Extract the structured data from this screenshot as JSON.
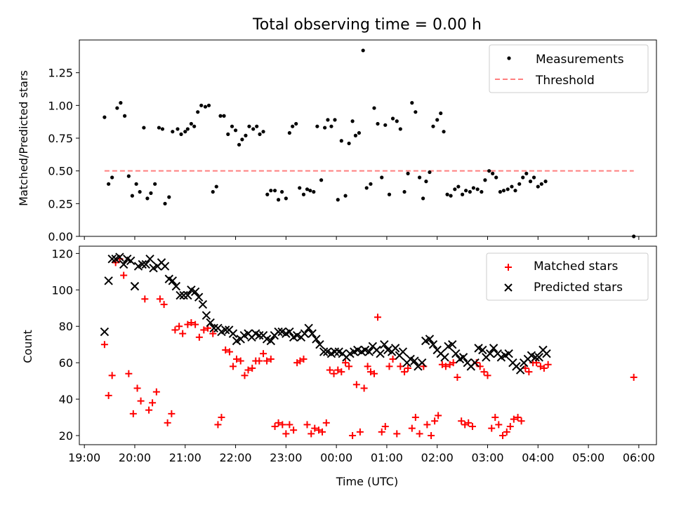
{
  "chart_data": [
    {
      "type": "scatter",
      "title": "Total observing time = 0.00 h",
      "xlabel": "",
      "ylabel": "Matched/Predicted stars",
      "xlim": [
        -0.1,
        11.35
      ],
      "ylim": [
        0.0,
        1.5
      ],
      "yticks": [
        "0.00",
        "0.25",
        "0.50",
        "0.75",
        "1.00",
        "1.25"
      ],
      "legend_position": "top-right",
      "threshold": {
        "name": "Threshold",
        "y": 0.5,
        "x": [
          0.4,
          10.9
        ],
        "color": "#ff7f7f"
      },
      "series": [
        {
          "name": "Measurements",
          "color": "#000000",
          "x": [
            0.4,
            0.48,
            0.55,
            0.65,
            0.72,
            0.8,
            0.88,
            0.95,
            1.03,
            1.1,
            1.18,
            1.25,
            1.32,
            1.4,
            1.48,
            1.55,
            1.6,
            1.68,
            1.75,
            1.85,
            1.92,
            2.0,
            2.05,
            2.12,
            2.18,
            2.25,
            2.32,
            2.4,
            2.47,
            2.55,
            2.62,
            2.7,
            2.77,
            2.85,
            2.93,
            3.0,
            3.07,
            3.13,
            3.2,
            3.27,
            3.35,
            3.42,
            3.48,
            3.55,
            3.63,
            3.7,
            3.78,
            3.85,
            3.92,
            4.0,
            4.07,
            4.13,
            4.2,
            4.27,
            4.35,
            4.42,
            4.48,
            4.55,
            4.62,
            4.7,
            4.77,
            4.83,
            4.9,
            4.97,
            5.03,
            5.1,
            5.18,
            5.25,
            5.32,
            5.38,
            5.45,
            5.53,
            5.6,
            5.68,
            5.75,
            5.82,
            5.9,
            5.97,
            6.05,
            6.12,
            6.2,
            6.27,
            6.35,
            6.42,
            6.5,
            6.57,
            6.65,
            6.72,
            6.78,
            6.85,
            6.92,
            7.0,
            7.07,
            7.13,
            7.2,
            7.27,
            7.35,
            7.42,
            7.5,
            7.57,
            7.65,
            7.72,
            7.8,
            7.88,
            7.95,
            8.03,
            8.1,
            8.17,
            8.25,
            8.32,
            8.4,
            8.48,
            8.55,
            8.63,
            8.7,
            8.77,
            8.85,
            8.92,
            9.0,
            9.07,
            9.15,
            10.9
          ],
          "y": [
            0.91,
            0.4,
            0.45,
            0.98,
            1.02,
            0.92,
            0.46,
            0.31,
            0.4,
            0.34,
            0.83,
            0.29,
            0.33,
            0.4,
            0.83,
            0.82,
            0.25,
            0.3,
            0.8,
            0.82,
            0.78,
            0.8,
            0.82,
            0.86,
            0.84,
            0.95,
            1.0,
            0.99,
            1.0,
            0.34,
            0.38,
            0.92,
            0.92,
            0.78,
            0.84,
            0.81,
            0.7,
            0.74,
            0.77,
            0.84,
            0.82,
            0.84,
            0.78,
            0.8,
            0.32,
            0.35,
            0.35,
            0.28,
            0.34,
            0.29,
            0.79,
            0.84,
            0.86,
            0.37,
            0.32,
            0.36,
            0.35,
            0.34,
            0.84,
            0.43,
            0.83,
            0.89,
            0.84,
            0.89,
            0.28,
            0.73,
            0.31,
            0.71,
            0.88,
            0.77,
            0.79,
            1.42,
            0.37,
            0.4,
            0.98,
            0.86,
            0.45,
            0.85,
            0.32,
            0.9,
            0.88,
            0.82,
            0.34,
            0.48,
            1.02,
            0.95,
            0.45,
            0.29,
            0.42,
            0.49,
            0.84,
            0.89,
            0.94,
            0.8,
            0.32,
            0.31,
            0.36,
            0.38,
            0.32,
            0.35,
            0.34,
            0.37,
            0.36,
            0.34,
            0.43,
            0.5,
            0.48,
            0.45,
            0.34,
            0.35,
            0.36,
            0.38,
            0.35,
            0.4,
            0.45,
            0.48,
            0.42,
            0.45,
            0.38,
            0.4,
            0.42,
            0.0
          ]
        }
      ]
    },
    {
      "type": "scatter",
      "title": "",
      "xlabel": "Time (UTC)",
      "ylabel": "Count",
      "xlim": [
        -0.1,
        11.35
      ],
      "ylim": [
        15,
        124
      ],
      "yticks": [
        "20",
        "40",
        "60",
        "80",
        "100",
        "120"
      ],
      "xticks": [
        "19:00",
        "20:00",
        "21:00",
        "22:00",
        "23:00",
        "00:00",
        "01:00",
        "02:00",
        "03:00",
        "04:00",
        "05:00",
        "06:00"
      ],
      "legend_position": "top-right",
      "series": [
        {
          "name": "Matched stars",
          "marker": "plus",
          "color": "#ff0000",
          "x": [
            0.4,
            0.48,
            0.55,
            0.62,
            0.7,
            0.78,
            0.88,
            0.97,
            1.05,
            1.12,
            1.2,
            1.28,
            1.35,
            1.43,
            1.5,
            1.58,
            1.65,
            1.73,
            1.8,
            1.88,
            1.95,
            2.05,
            2.12,
            2.2,
            2.28,
            2.37,
            2.45,
            2.55,
            2.65,
            2.72,
            2.8,
            2.88,
            2.95,
            3.02,
            3.1,
            3.18,
            3.25,
            3.33,
            3.4,
            3.47,
            3.55,
            3.62,
            3.7,
            3.78,
            3.85,
            3.93,
            4.0,
            4.07,
            4.15,
            4.22,
            4.28,
            4.35,
            4.42,
            4.5,
            4.57,
            4.65,
            4.72,
            4.8,
            4.87,
            4.95,
            5.03,
            5.1,
            5.18,
            5.25,
            5.32,
            5.4,
            5.47,
            5.55,
            5.62,
            5.68,
            5.75,
            5.82,
            5.9,
            5.97,
            6.05,
            6.12,
            6.2,
            6.27,
            6.35,
            6.42,
            6.5,
            6.57,
            6.65,
            6.73,
            6.8,
            6.88,
            6.95,
            7.02,
            7.1,
            7.17,
            7.25,
            7.32,
            7.4,
            7.48,
            7.55,
            7.62,
            7.7,
            7.78,
            7.85,
            7.93,
            8.0,
            8.08,
            8.15,
            8.22,
            8.3,
            8.38,
            8.45,
            8.52,
            8.6,
            8.67,
            8.75,
            8.82,
            8.9,
            8.97,
            9.05,
            9.12,
            9.2,
            10.9
          ],
          "y": [
            70,
            42,
            53,
            115,
            117,
            108,
            54,
            32,
            46,
            39,
            95,
            34,
            38,
            44,
            95,
            92,
            27,
            32,
            78,
            80,
            76,
            81,
            82,
            81,
            74,
            78,
            79,
            76,
            26,
            30,
            67,
            66,
            58,
            62,
            61,
            53,
            56,
            57,
            61,
            61,
            65,
            61,
            62,
            25,
            27,
            26,
            21,
            26,
            23,
            60,
            61,
            62,
            26,
            21,
            24,
            23,
            22,
            27,
            56,
            54,
            56,
            55,
            60,
            58,
            20,
            48,
            22,
            46,
            58,
            55,
            54,
            85,
            22,
            25,
            58,
            62,
            21,
            58,
            55,
            57,
            24,
            30,
            21,
            58,
            26,
            20,
            28,
            31,
            59,
            58,
            59,
            60,
            52,
            28,
            26,
            27,
            25,
            60,
            58,
            55,
            53,
            24,
            30,
            26,
            20,
            22,
            25,
            29,
            30,
            28,
            57,
            55,
            60,
            60,
            58,
            57,
            59,
            52
          ],
          "_note_last": "last point at x=10.9 (05:54) y=52"
        },
        {
          "name": "Predicted stars",
          "marker": "x",
          "color": "#000000",
          "x": [
            0.4,
            0.48,
            0.55,
            0.62,
            0.7,
            0.78,
            0.85,
            0.92,
            1.0,
            1.07,
            1.15,
            1.22,
            1.3,
            1.37,
            1.45,
            1.53,
            1.6,
            1.68,
            1.75,
            1.82,
            1.9,
            1.97,
            2.05,
            2.12,
            2.2,
            2.27,
            2.35,
            2.42,
            2.5,
            2.57,
            2.65,
            2.72,
            2.8,
            2.87,
            2.95,
            3.02,
            3.1,
            3.17,
            3.25,
            3.32,
            3.4,
            3.47,
            3.55,
            3.62,
            3.7,
            3.77,
            3.85,
            3.92,
            4.0,
            4.07,
            4.15,
            4.22,
            4.3,
            4.37,
            4.45,
            4.52,
            4.6,
            4.67,
            4.75,
            4.82,
            4.9,
            4.97,
            5.05,
            5.12,
            5.2,
            5.27,
            5.35,
            5.42,
            5.5,
            5.57,
            5.65,
            5.72,
            5.8,
            5.87,
            5.95,
            6.02,
            6.1,
            6.17,
            6.25,
            6.32,
            6.4,
            6.47,
            6.55,
            6.62,
            6.7,
            6.77,
            6.85,
            6.92,
            7.0,
            7.07,
            7.15,
            7.22,
            7.3,
            7.37,
            7.45,
            7.52,
            7.6,
            7.67,
            7.75,
            7.82,
            7.9,
            7.97,
            8.05,
            8.12,
            8.2,
            8.27,
            8.35,
            8.42,
            8.5,
            8.57,
            8.65,
            8.72,
            8.8,
            8.87,
            8.95,
            9.02,
            9.1,
            9.17
          ],
          "y": [
            77,
            105,
            117,
            117,
            118,
            114,
            117,
            116,
            102,
            113,
            114,
            114,
            117,
            112,
            113,
            115,
            113,
            106,
            105,
            102,
            97,
            97,
            97,
            100,
            99,
            96,
            92,
            86,
            82,
            79,
            79,
            77,
            78,
            78,
            76,
            72,
            73,
            75,
            76,
            74,
            76,
            75,
            75,
            73,
            72,
            75,
            77,
            77,
            76,
            77,
            74,
            75,
            74,
            76,
            79,
            76,
            73,
            70,
            66,
            66,
            65,
            66,
            66,
            65,
            63,
            65,
            66,
            67,
            66,
            67,
            66,
            69,
            67,
            65,
            70,
            67,
            66,
            68,
            64,
            66,
            60,
            62,
            61,
            58,
            60,
            72,
            73,
            70,
            67,
            65,
            63,
            69,
            70,
            65,
            62,
            63,
            60,
            58,
            60,
            68,
            67,
            63,
            65,
            68,
            65,
            63,
            64,
            65,
            60,
            58,
            56,
            60,
            62,
            64,
            63,
            63,
            67,
            65
          ]
        }
      ]
    }
  ],
  "colors": {
    "matched": "#ff0000",
    "predicted": "#000000",
    "threshold": "#ff7f7f",
    "measurements": "#000000"
  }
}
